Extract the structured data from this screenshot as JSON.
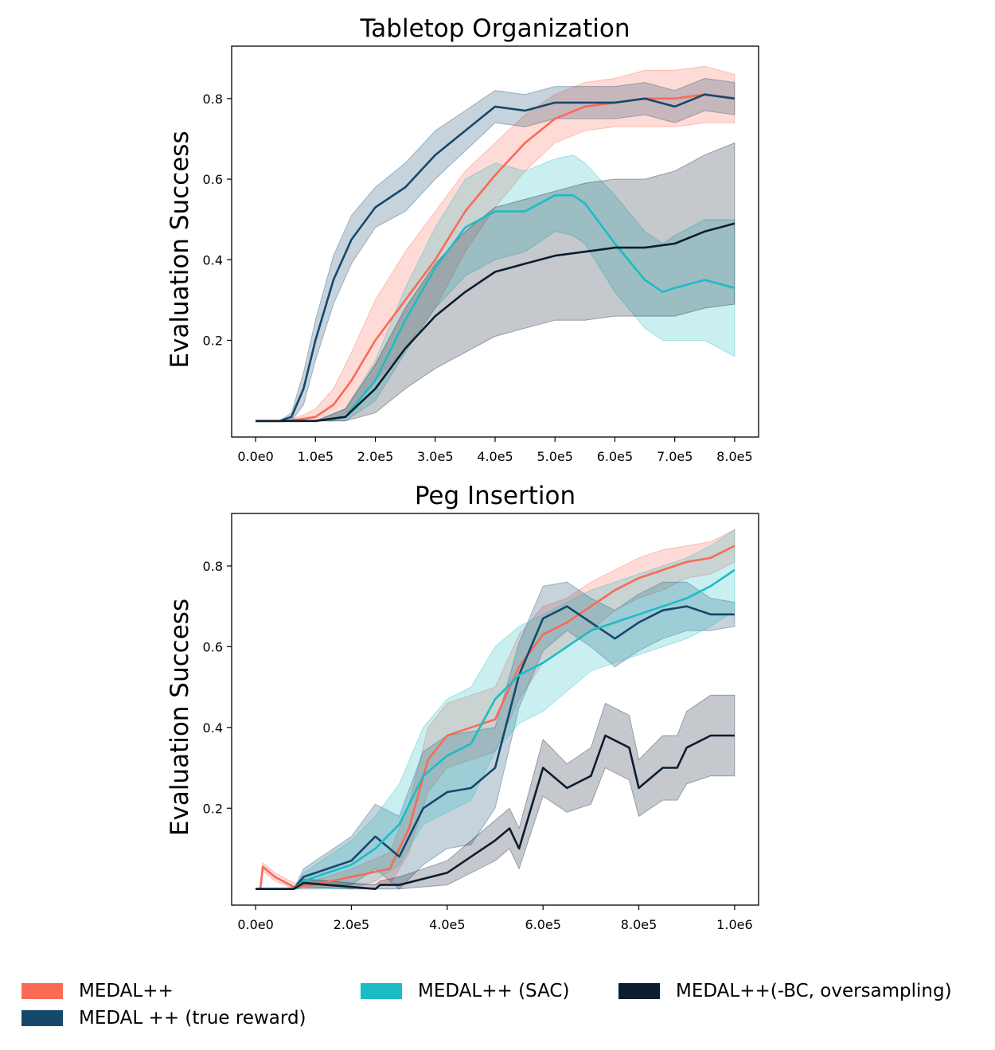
{
  "colors": {
    "medal": "#fa6a55",
    "true_reward": "#15486b",
    "sac": "#1cbcc6",
    "bc": "#0c1d30"
  },
  "chart_data": [
    {
      "type": "line",
      "title": "Tabletop Organization",
      "xlabel": "",
      "ylabel": "Evaluation Success",
      "xlim": [
        -40000,
        840000
      ],
      "ylim": [
        -0.04,
        0.93
      ],
      "xticks": [
        0,
        100000,
        200000,
        300000,
        400000,
        500000,
        600000,
        700000,
        800000
      ],
      "xtick_labels": [
        "0.0e0",
        "1.0e5",
        "2.0e5",
        "3.0e5",
        "4.0e5",
        "5.0e5",
        "6.0e5",
        "7.0e5",
        "8.0e5"
      ],
      "yticks": [
        0.2,
        0.4,
        0.6,
        0.8
      ],
      "ytick_labels": [
        "0.2",
        "0.4",
        "0.6",
        "0.8"
      ],
      "series": [
        {
          "name": "MEDAL++",
          "color_key": "medal",
          "x": [
            0,
            50000,
            80000,
            100000,
            130000,
            160000,
            200000,
            250000,
            300000,
            350000,
            400000,
            450000,
            500000,
            550000,
            600000,
            650000,
            700000,
            750000,
            800000
          ],
          "y": [
            0,
            0,
            0.005,
            0.01,
            0.04,
            0.1,
            0.2,
            0.3,
            0.4,
            0.52,
            0.61,
            0.69,
            0.75,
            0.78,
            0.79,
            0.8,
            0.8,
            0.81,
            0.8
          ],
          "band": [
            0,
            0,
            0.01,
            0.02,
            0.04,
            0.07,
            0.1,
            0.12,
            0.12,
            0.1,
            0.08,
            0.07,
            0.06,
            0.06,
            0.06,
            0.07,
            0.07,
            0.07,
            0.06
          ]
        },
        {
          "name": "MEDAL ++ (true reward)",
          "color_key": "true_reward",
          "x": [
            0,
            40000,
            60000,
            80000,
            100000,
            130000,
            160000,
            200000,
            250000,
            300000,
            350000,
            400000,
            450000,
            500000,
            550000,
            600000,
            650000,
            700000,
            750000,
            800000
          ],
          "y": [
            0,
            0,
            0.01,
            0.08,
            0.2,
            0.35,
            0.45,
            0.53,
            0.58,
            0.66,
            0.72,
            0.78,
            0.77,
            0.79,
            0.79,
            0.79,
            0.8,
            0.78,
            0.81,
            0.8
          ],
          "band": [
            0,
            0,
            0.01,
            0.04,
            0.05,
            0.06,
            0.06,
            0.05,
            0.06,
            0.06,
            0.05,
            0.04,
            0.04,
            0.04,
            0.04,
            0.04,
            0.04,
            0.04,
            0.04,
            0.04
          ]
        },
        {
          "name": "MEDAL++ (SAC)",
          "color_key": "sac",
          "x": [
            0,
            100000,
            150000,
            200000,
            250000,
            300000,
            350000,
            400000,
            450000,
            500000,
            530000,
            550000,
            600000,
            650000,
            680000,
            700000,
            750000,
            800000
          ],
          "y": [
            0,
            0,
            0.01,
            0.1,
            0.25,
            0.38,
            0.48,
            0.52,
            0.52,
            0.56,
            0.56,
            0.54,
            0.44,
            0.35,
            0.32,
            0.33,
            0.35,
            0.33
          ],
          "band": [
            0,
            0,
            0.02,
            0.05,
            0.08,
            0.1,
            0.12,
            0.12,
            0.1,
            0.09,
            0.1,
            0.1,
            0.12,
            0.12,
            0.12,
            0.13,
            0.15,
            0.17
          ]
        },
        {
          "name": "MEDAL++(-BC, oversampling)",
          "color_key": "bc",
          "x": [
            0,
            100000,
            150000,
            200000,
            250000,
            300000,
            350000,
            400000,
            450000,
            500000,
            550000,
            600000,
            650000,
            700000,
            750000,
            800000
          ],
          "y": [
            0,
            0,
            0.01,
            0.08,
            0.18,
            0.26,
            0.32,
            0.37,
            0.39,
            0.41,
            0.42,
            0.43,
            0.43,
            0.44,
            0.47,
            0.49
          ],
          "band": [
            0,
            0,
            0.02,
            0.06,
            0.1,
            0.13,
            0.15,
            0.16,
            0.16,
            0.16,
            0.17,
            0.17,
            0.17,
            0.18,
            0.19,
            0.2
          ]
        }
      ],
      "legend": "bottom"
    },
    {
      "type": "line",
      "title": "Peg Insertion",
      "xlabel": "",
      "ylabel": "Evaluation Success",
      "xlim": [
        -50000,
        1050000
      ],
      "ylim": [
        -0.04,
        0.93
      ],
      "xticks": [
        0,
        200000,
        400000,
        600000,
        800000,
        1000000
      ],
      "xtick_labels": [
        "0.0e0",
        "2.0e5",
        "4.0e5",
        "6.0e5",
        "8.0e5",
        "1.0e6"
      ],
      "yticks": [
        0.2,
        0.4,
        0.6,
        0.8
      ],
      "ytick_labels": [
        "0.2",
        "0.4",
        "0.6",
        "0.8"
      ],
      "series": [
        {
          "name": "MEDAL++",
          "color_key": "medal",
          "x": [
            0,
            10000,
            15000,
            40000,
            80000,
            120000,
            200000,
            280000,
            320000,
            360000,
            400000,
            450000,
            500000,
            550000,
            600000,
            650000,
            700000,
            750000,
            800000,
            850000,
            900000,
            950000,
            1000000
          ],
          "y": [
            0,
            0,
            0.055,
            0.03,
            0.005,
            0.01,
            0.03,
            0.05,
            0.15,
            0.32,
            0.38,
            0.4,
            0.42,
            0.55,
            0.63,
            0.66,
            0.7,
            0.74,
            0.77,
            0.79,
            0.81,
            0.82,
            0.85
          ],
          "band": [
            0,
            0,
            0.01,
            0.01,
            0.01,
            0.01,
            0.02,
            0.04,
            0.06,
            0.08,
            0.08,
            0.08,
            0.08,
            0.08,
            0.07,
            0.06,
            0.06,
            0.05,
            0.05,
            0.05,
            0.04,
            0.04,
            0.04
          ]
        },
        {
          "name": "MEDAL ++ (true reward)",
          "color_key": "true_reward",
          "x": [
            0,
            80000,
            100000,
            150000,
            200000,
            250000,
            300000,
            350000,
            400000,
            450000,
            500000,
            550000,
            600000,
            650000,
            700000,
            750000,
            800000,
            850000,
            900000,
            950000,
            1000000
          ],
          "y": [
            0,
            0,
            0.03,
            0.05,
            0.07,
            0.13,
            0.08,
            0.2,
            0.24,
            0.25,
            0.3,
            0.53,
            0.67,
            0.7,
            0.66,
            0.62,
            0.66,
            0.69,
            0.7,
            0.68,
            0.68
          ],
          "band": [
            0,
            0,
            0.02,
            0.04,
            0.06,
            0.08,
            0.1,
            0.14,
            0.14,
            0.14,
            0.1,
            0.08,
            0.08,
            0.06,
            0.06,
            0.07,
            0.07,
            0.07,
            0.06,
            0.04,
            0.03
          ]
        },
        {
          "name": "MEDAL++ (SAC)",
          "color_key": "sac",
          "x": [
            0,
            80000,
            100000,
            150000,
            200000,
            250000,
            300000,
            350000,
            400000,
            450000,
            500000,
            550000,
            600000,
            650000,
            700000,
            750000,
            800000,
            850000,
            900000,
            950000,
            1000000
          ],
          "y": [
            0,
            0,
            0.02,
            0.04,
            0.06,
            0.1,
            0.16,
            0.28,
            0.33,
            0.36,
            0.47,
            0.53,
            0.56,
            0.6,
            0.64,
            0.66,
            0.68,
            0.7,
            0.72,
            0.75,
            0.79
          ],
          "band": [
            0,
            0,
            0.02,
            0.04,
            0.06,
            0.08,
            0.1,
            0.12,
            0.14,
            0.14,
            0.13,
            0.12,
            0.12,
            0.11,
            0.1,
            0.1,
            0.1,
            0.1,
            0.1,
            0.1,
            0.1
          ]
        },
        {
          "name": "MEDAL++(-BC, oversampling)",
          "color_key": "bc",
          "x": [
            0,
            80000,
            100000,
            200000,
            250000,
            260000,
            300000,
            400000,
            450000,
            500000,
            530000,
            550000,
            600000,
            650000,
            700000,
            730000,
            780000,
            800000,
            850000,
            880000,
            900000,
            950000,
            1000000
          ],
          "y": [
            0,
            0,
            0.015,
            0.005,
            0.0,
            0.01,
            0.01,
            0.04,
            0.08,
            0.12,
            0.15,
            0.1,
            0.3,
            0.25,
            0.28,
            0.38,
            0.35,
            0.25,
            0.3,
            0.3,
            0.35,
            0.38,
            0.38
          ],
          "band": [
            0,
            0,
            0.01,
            0.01,
            0.01,
            0.01,
            0.02,
            0.03,
            0.04,
            0.05,
            0.05,
            0.05,
            0.07,
            0.06,
            0.07,
            0.08,
            0.08,
            0.07,
            0.08,
            0.08,
            0.09,
            0.1,
            0.1
          ]
        }
      ],
      "legend": "bottom"
    }
  ],
  "legend": {
    "items": [
      {
        "label": "MEDAL++",
        "color_key": "medal"
      },
      {
        "label": "MEDAL ++ (true reward)",
        "color_key": "true_reward"
      },
      {
        "label": "MEDAL++ (SAC)",
        "color_key": "sac"
      },
      {
        "label": "MEDAL++(-BC, oversampling)",
        "color_key": "bc"
      }
    ]
  }
}
